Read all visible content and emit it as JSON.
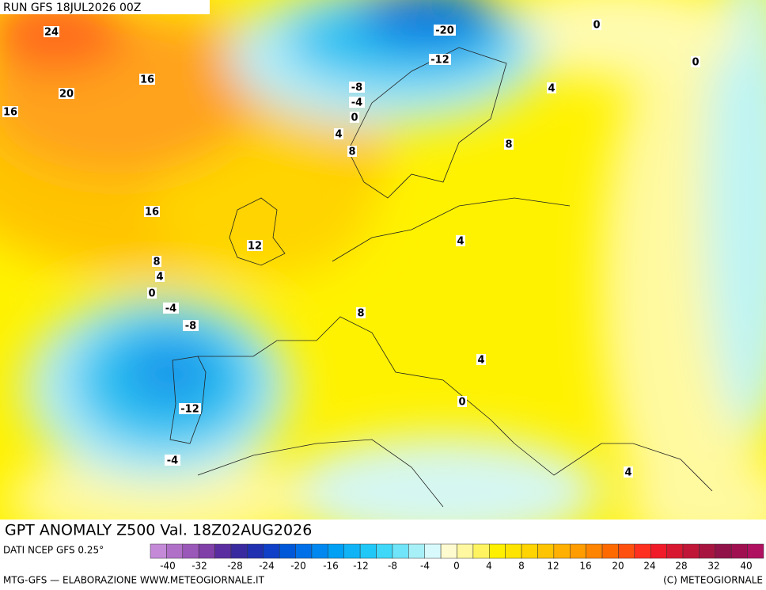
{
  "header": {
    "run": "RUN GFS 18JUL2026 00Z"
  },
  "title": "GPT ANOMALY Z500 Val. 18Z02AUG2026",
  "source": "DATI NCEP GFS 0.25°",
  "credit_left": "MTG-GFS — ELABORAZIONE WWW.METEOGIORNALE.IT",
  "credit_right": "(C) METEOGIORNALE",
  "colorbar": {
    "labels": [
      -40,
      -32,
      -28,
      -24,
      -20,
      -16,
      -12,
      -8,
      -4,
      0,
      4,
      8,
      12,
      16,
      20,
      24,
      28,
      32,
      40
    ]
  },
  "map": {
    "contour_labels": [
      24,
      16,
      20,
      16,
      16,
      12,
      8,
      4,
      0,
      -4,
      -8,
      -12,
      -4,
      -20,
      -12,
      -8,
      -4,
      0,
      4,
      8,
      0,
      0,
      4,
      8,
      4,
      8,
      4,
      0,
      4
    ]
  }
}
